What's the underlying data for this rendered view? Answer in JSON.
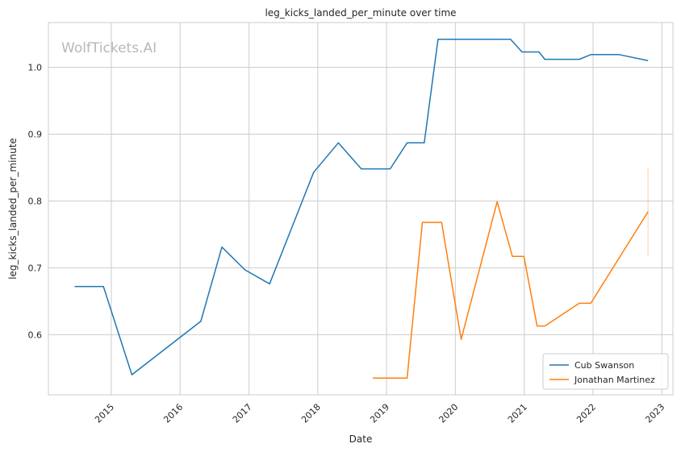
{
  "chart_data": {
    "type": "line",
    "title": "leg_kicks_landed_per_minute over time",
    "xlabel": "Date",
    "ylabel": "leg_kicks_landed_per_minute",
    "watermark": "WolfTickets.AI",
    "xlim": [
      "2014-02-01",
      "2023-03-01"
    ],
    "ylim": [
      0.51,
      1.067
    ],
    "x_ticks": [
      "2015",
      "2016",
      "2017",
      "2018",
      "2019",
      "2020",
      "2021",
      "2022",
      "2023"
    ],
    "y_ticks": [
      0.6,
      0.7,
      0.8,
      0.9,
      1.0
    ],
    "y_tick_labels": [
      "0.6",
      "0.7",
      "0.8",
      "0.9",
      "1.0"
    ],
    "grid": true,
    "legend_position": "bottom-right",
    "series": [
      {
        "name": "Cub Swanson",
        "color": "#1f77b4",
        "points": [
          [
            "2014-06-20",
            0.672
          ],
          [
            "2014-11-20",
            0.672
          ],
          [
            "2015-04-20",
            0.54
          ],
          [
            "2016-04-20",
            0.62
          ],
          [
            "2016-08-10",
            0.731
          ],
          [
            "2016-12-10",
            0.697
          ],
          [
            "2017-04-20",
            0.676
          ],
          [
            "2017-12-10",
            0.843
          ],
          [
            "2018-04-20",
            0.887
          ],
          [
            "2018-08-20",
            0.848
          ],
          [
            "2019-01-20",
            0.848
          ],
          [
            "2019-04-20",
            0.887
          ],
          [
            "2019-07-20",
            0.887
          ],
          [
            "2019-10-01",
            1.042
          ],
          [
            "2020-10-20",
            1.042
          ],
          [
            "2020-12-20",
            1.023
          ],
          [
            "2021-03-20",
            1.023
          ],
          [
            "2021-04-20",
            1.012
          ],
          [
            "2021-10-20",
            1.012
          ],
          [
            "2021-12-20",
            1.019
          ],
          [
            "2022-05-20",
            1.019
          ],
          [
            "2022-10-20",
            1.01
          ]
        ]
      },
      {
        "name": "Jonathan Martinez",
        "color": "#ff7f0e",
        "points": [
          [
            "2018-10-20",
            0.535
          ],
          [
            "2019-04-20",
            0.535
          ],
          [
            "2019-07-10",
            0.768
          ],
          [
            "2019-10-20",
            0.768
          ],
          [
            "2020-02-01",
            0.593
          ],
          [
            "2020-08-10",
            0.799
          ],
          [
            "2020-10-30",
            0.717
          ],
          [
            "2020-12-30",
            0.717
          ],
          [
            "2021-03-10",
            0.613
          ],
          [
            "2021-04-20",
            0.613
          ],
          [
            "2021-10-20",
            0.647
          ],
          [
            "2021-12-20",
            0.647
          ],
          [
            "2022-10-20",
            0.784
          ]
        ],
        "error_band": {
          "x": "2022-10-20",
          "low": 0.717,
          "high": 0.85
        }
      }
    ]
  }
}
